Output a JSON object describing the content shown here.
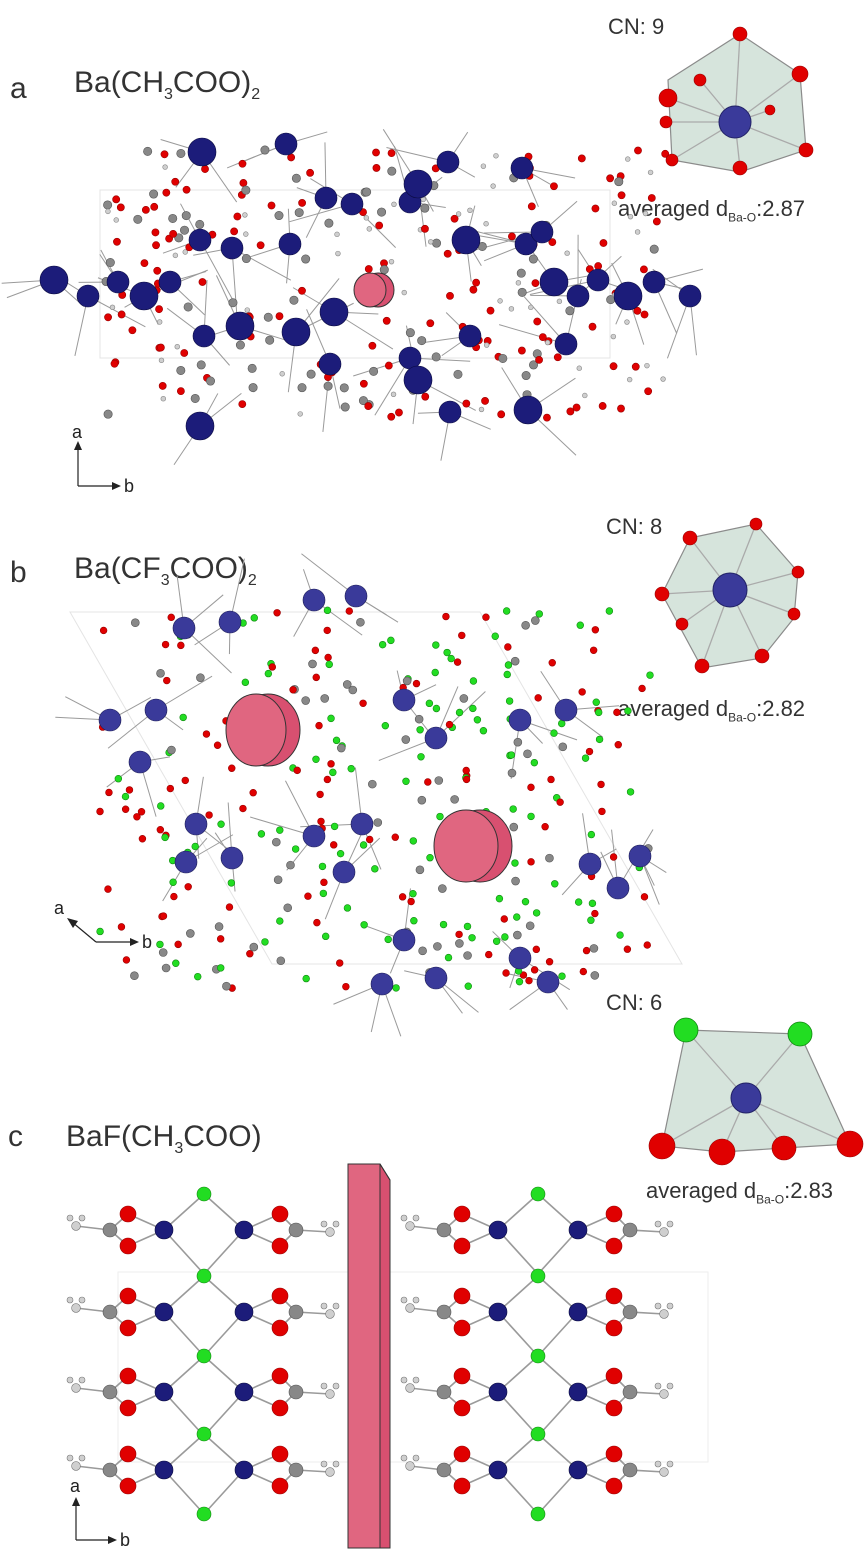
{
  "panels": [
    {
      "letter": "a",
      "formula_prefix": "Ba(CH",
      "formula_sub1": "3",
      "formula_mid": "COO)",
      "formula_sub2": "2",
      "cn_text": "CN: 9",
      "avg_prefix": "averaged d",
      "avg_sub": "Ba-O",
      "avg_value": ":2.87",
      "axis_up": "a",
      "axis_right": "b"
    },
    {
      "letter": "b",
      "formula_prefix": "Ba(CF",
      "formula_sub1": "3",
      "formula_mid": "COO)",
      "formula_sub2": "2",
      "cn_text": "CN: 8",
      "avg_prefix": "averaged d",
      "avg_sub": "Ba-O",
      "avg_value": ":2.82",
      "axis_up": "a",
      "axis_right": "b"
    },
    {
      "letter": "c",
      "formula_prefix": "BaF(CH",
      "formula_sub1": "3",
      "formula_mid": "COO)",
      "formula_sub2": "",
      "cn_text": "CN: 6",
      "avg_prefix": "averaged d",
      "avg_sub": "Ba-O",
      "avg_value": ":2.83",
      "axis_up": "a",
      "axis_right": "b"
    }
  ],
  "colors": {
    "barium": "#1c1c7a",
    "barium_light": "#3a3a9a",
    "oxygen": "#e00000",
    "carbon": "#888888",
    "hydrogen": "#cfcfcf",
    "fluorine": "#22dd22",
    "channel": "#e06680",
    "polyhedron": "#cfe0d6",
    "bond": "#9a9a9a"
  }
}
